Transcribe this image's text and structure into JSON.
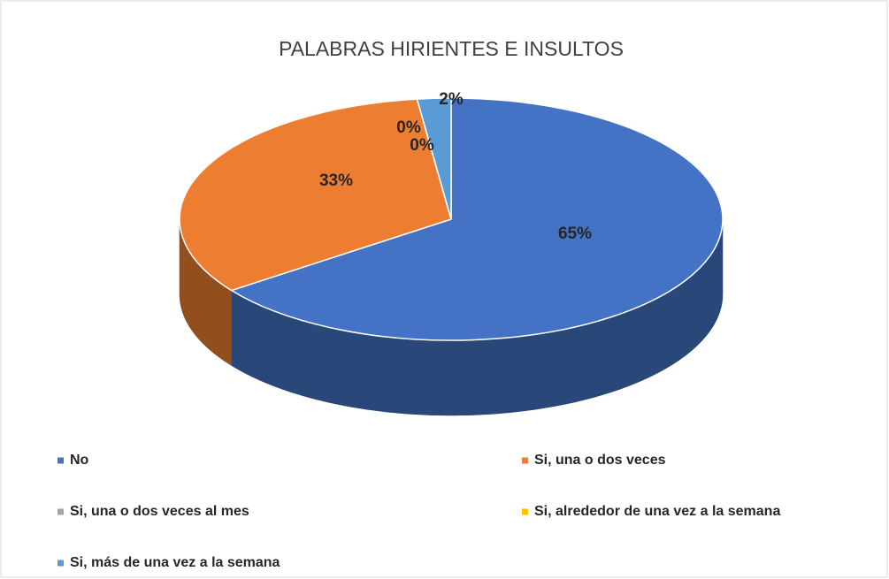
{
  "chart_data": {
    "type": "pie",
    "title": "PALABRAS HIRIENTES E INSULTOS",
    "categories": [
      "No",
      "Si, una o dos veces",
      "Si, una o dos veces al mes",
      "Si, alrededor de una vez a la semana",
      "Si, más de una vez a la semana"
    ],
    "values": [
      65,
      33,
      0,
      0,
      2
    ],
    "value_labels": [
      "65%",
      "33%",
      "0%",
      "0%",
      "2%"
    ],
    "colors": [
      "#4472c4",
      "#ed7d31",
      "#a5a5a5",
      "#ffc000",
      "#5b9bd5"
    ],
    "legend": "bottom"
  }
}
